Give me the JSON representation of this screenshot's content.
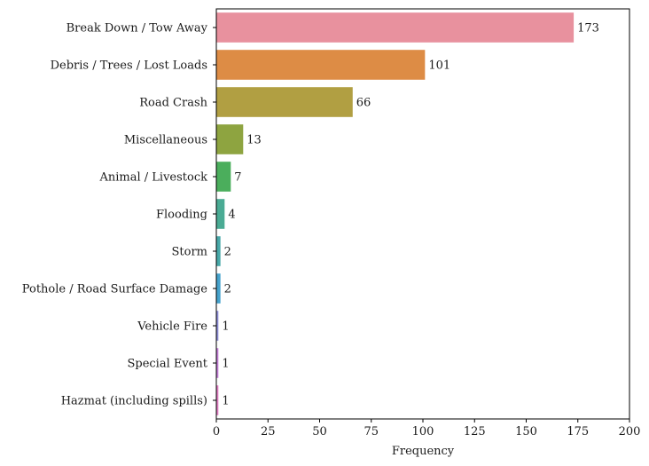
{
  "chart_data": {
    "type": "bar",
    "orientation": "horizontal",
    "categories": [
      "Break Down / Tow Away",
      "Debris / Trees / Lost Loads",
      "Road Crash",
      "Miscellaneous",
      "Animal / Livestock",
      "Flooding",
      "Storm",
      "Pothole / Road Surface Damage",
      "Vehicle Fire",
      "Special Event",
      "Hazmat (including spills)"
    ],
    "values": [
      173,
      101,
      66,
      13,
      7,
      4,
      2,
      2,
      1,
      1,
      1
    ],
    "value_labels": [
      "173",
      "101",
      "66",
      "13",
      "7",
      "4",
      "2",
      "2",
      "1",
      "1",
      "1"
    ],
    "colors": [
      "#e8919e",
      "#dd8c45",
      "#b19f42",
      "#8ea440",
      "#4bae5c",
      "#4aab94",
      "#47a8a8",
      "#45a2cc",
      "#8e8ed8",
      "#c47fd8",
      "#e27fc4"
    ],
    "title": "",
    "xlabel": "Frequency",
    "ylabel": "",
    "xlim": [
      0,
      200
    ],
    "xticks": [
      0,
      25,
      50,
      75,
      100,
      125,
      150,
      175,
      200
    ],
    "xtick_labels": [
      "0",
      "25",
      "50",
      "75",
      "100",
      "125",
      "150",
      "175",
      "200"
    ],
    "grid": false,
    "legend": "none"
  }
}
